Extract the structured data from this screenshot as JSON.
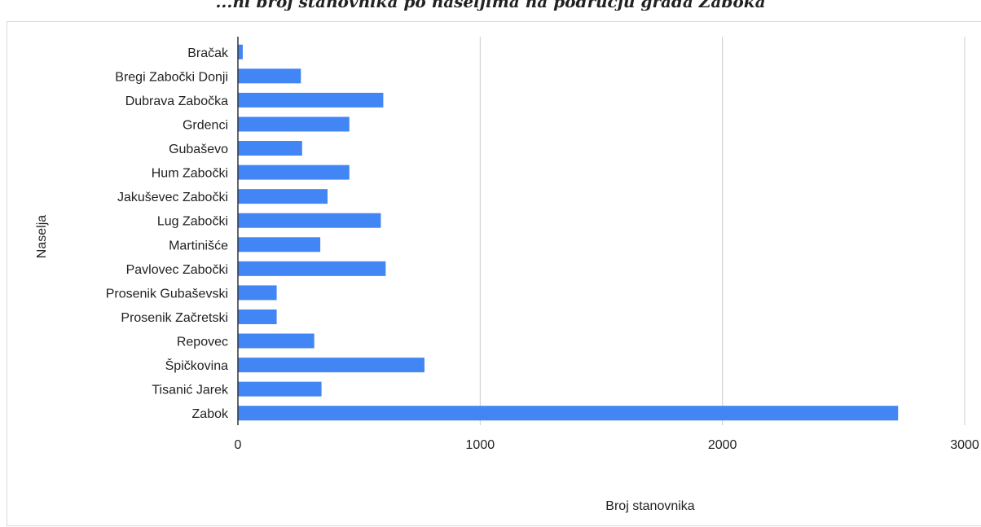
{
  "caption": "...ni broj stanovnika po naseljima na području grada Zaboka",
  "chart_data": {
    "type": "bar",
    "orientation": "horizontal",
    "categories": [
      "Bračak",
      "Bregi Zabočki Donji",
      "Dubrava Zabočka",
      "Grdenci",
      "Gubaševo",
      "Hum Zabočki",
      "Jakuševec Zabočki",
      "Lug Zabočki",
      "Martinišće",
      "Pavlovec Zabočki",
      "Prosenik Gubaševski",
      "Prosenik Začretski",
      "Repovec",
      "Špičkovina",
      "Tisanić Jarek",
      "Zabok"
    ],
    "values": [
      20,
      260,
      600,
      460,
      265,
      460,
      370,
      590,
      340,
      610,
      160,
      160,
      315,
      770,
      345,
      2725
    ],
    "xlabel": "Broj stanovnika",
    "ylabel": "Naselja",
    "xlim": [
      0,
      3000
    ],
    "xticks": [
      "0",
      "1000",
      "2000",
      "3000"
    ],
    "grid": "vertical",
    "bar_color": "#4285f4",
    "grid_color": "#cccccc",
    "axis_color": "#333333"
  }
}
